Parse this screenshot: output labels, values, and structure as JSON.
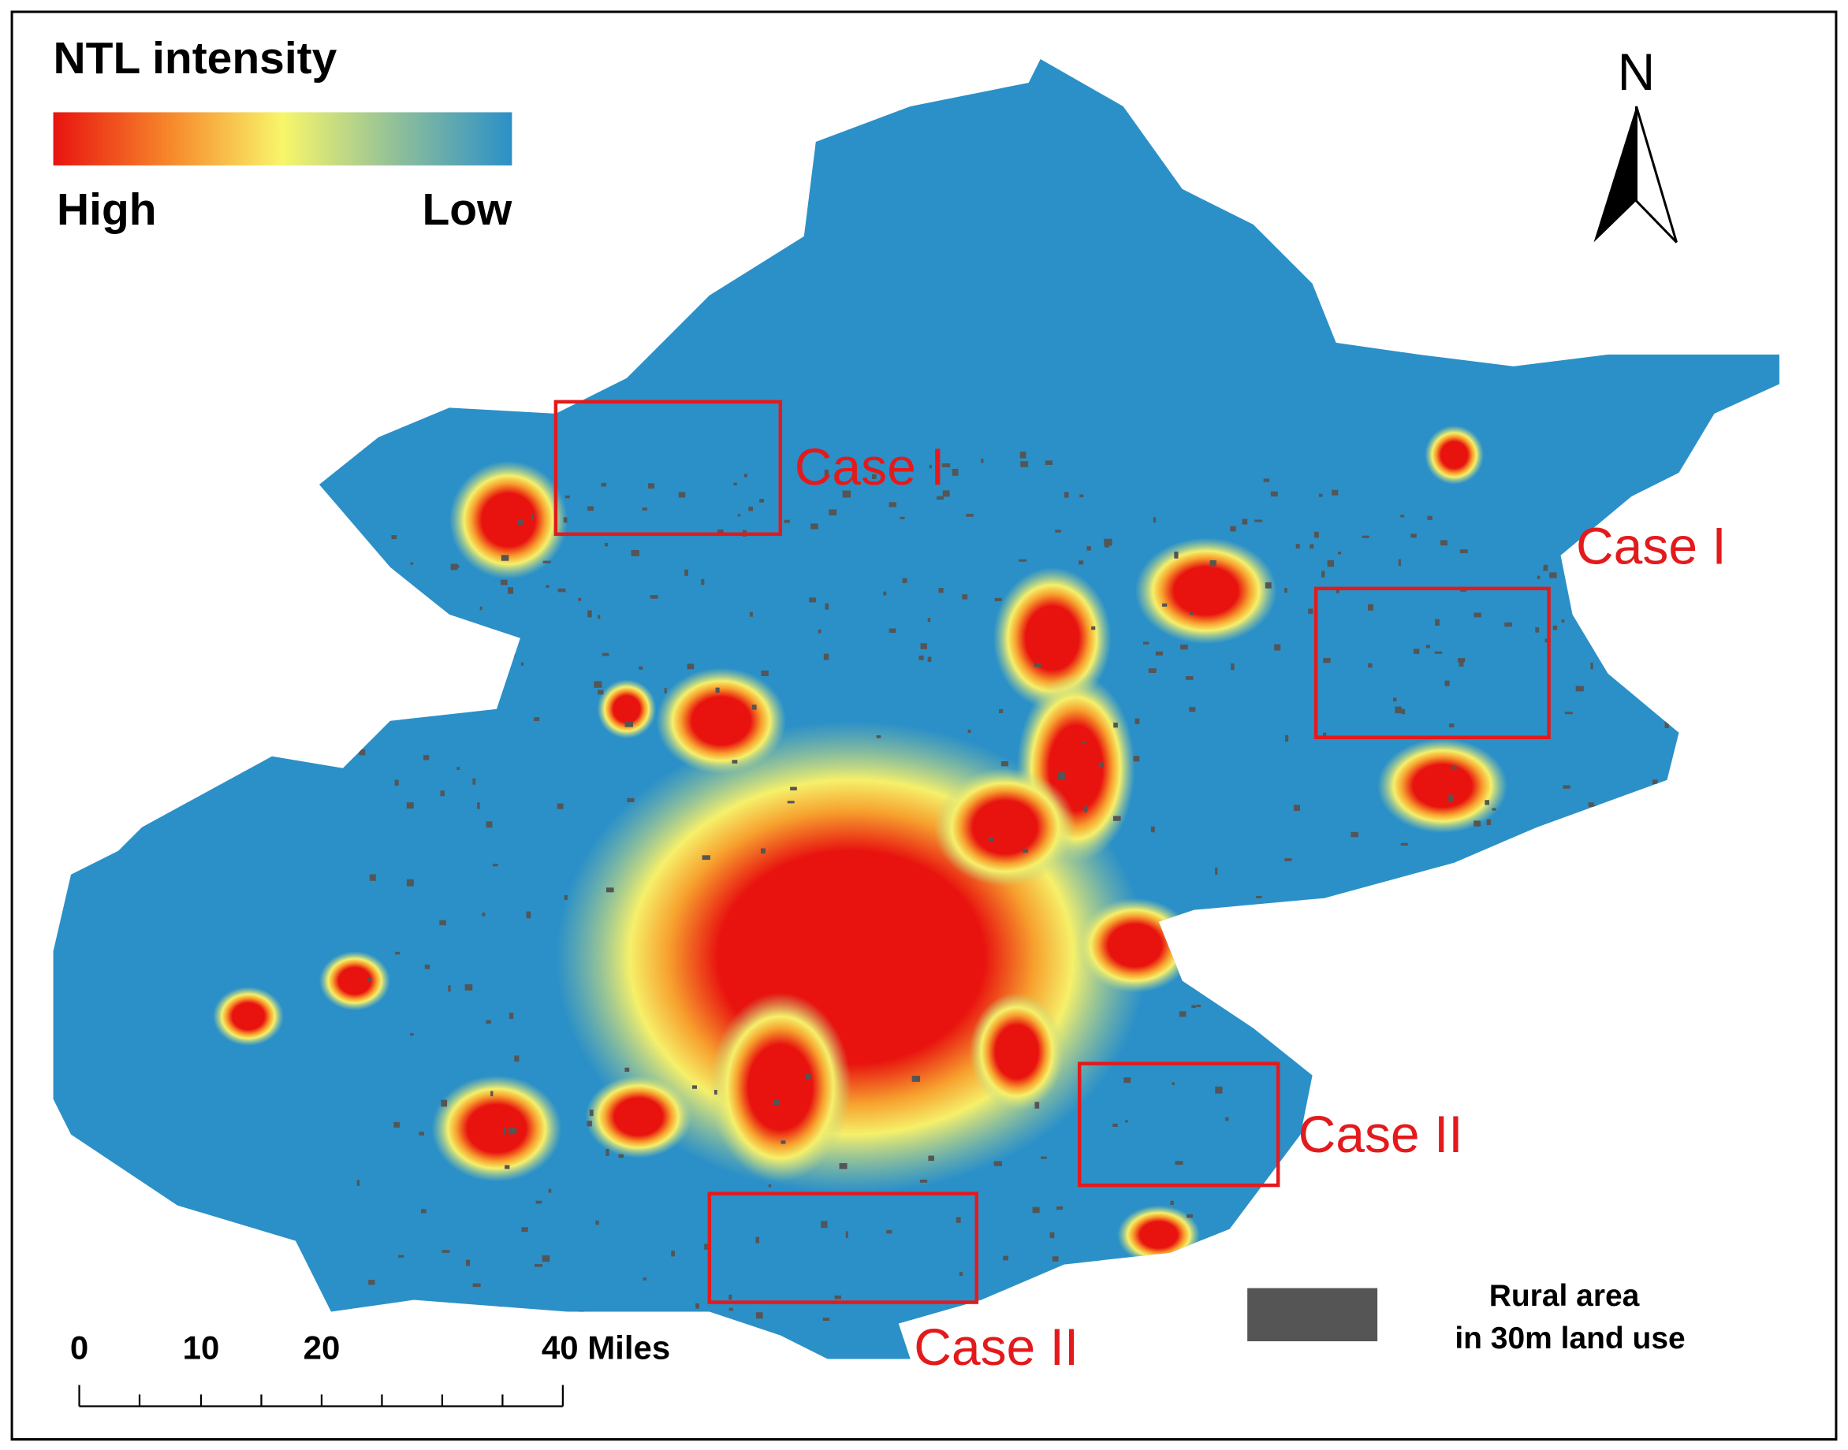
{
  "legend": {
    "title": "NTL intensity",
    "high": "High",
    "low": "Low"
  },
  "north": "N",
  "cases": [
    {
      "label": "Case I"
    },
    {
      "label": "Case I"
    },
    {
      "label": "Case II"
    },
    {
      "label": "Case II"
    }
  ],
  "scale_bar": {
    "labels": [
      "0",
      "10",
      "20",
      "40 Miles"
    ]
  },
  "rural_legend": {
    "lines": [
      "Rural area",
      "in 30m land use"
    ]
  }
}
